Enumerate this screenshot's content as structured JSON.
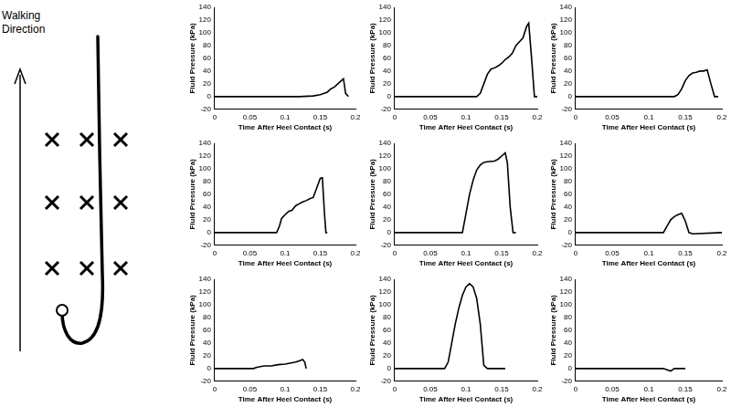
{
  "diagram": {
    "label": "Walking Direction"
  },
  "chart_data": [
    {
      "type": "line",
      "x_label": "Time After Heel Contact (s)",
      "y_label": "Fluid Pressure (kPa)",
      "xlim": [
        0,
        0.2
      ],
      "xticks": [
        0,
        0.05,
        0.1,
        0.15,
        0.2
      ],
      "ylim": [
        -20,
        140
      ],
      "yticks": [
        -20,
        0,
        20,
        40,
        60,
        80,
        100,
        120,
        140
      ],
      "grid": false,
      "series": [
        {
          "color": "#000000",
          "x": [
            0,
            0.12,
            0.14,
            0.15,
            0.16,
            0.165,
            0.17,
            0.175,
            0.18,
            0.183,
            0.186,
            0.19
          ],
          "values": [
            0,
            0,
            1,
            3,
            7,
            12,
            15,
            20,
            25,
            28,
            5,
            0
          ]
        }
      ]
    },
    {
      "type": "line",
      "x_label": "Time After Heel Contact (s)",
      "y_label": "Fluid Pressure (kPa)",
      "xlim": [
        0,
        0.2
      ],
      "xticks": [
        0,
        0.05,
        0.1,
        0.15,
        0.2
      ],
      "ylim": [
        -20,
        140
      ],
      "yticks": [
        -20,
        0,
        20,
        40,
        60,
        80,
        100,
        120,
        140
      ],
      "grid": false,
      "series": [
        {
          "color": "#000000",
          "x": [
            0,
            0.115,
            0.12,
            0.125,
            0.13,
            0.135,
            0.14,
            0.145,
            0.15,
            0.155,
            0.16,
            0.165,
            0.17,
            0.175,
            0.18,
            0.185,
            0.188,
            0.192,
            0.196,
            0.2
          ],
          "values": [
            0,
            0,
            5,
            20,
            35,
            43,
            45,
            48,
            52,
            58,
            62,
            68,
            80,
            86,
            92,
            110,
            115,
            60,
            0,
            0
          ]
        }
      ]
    },
    {
      "type": "line",
      "x_label": "Time After Heel Contact (s)",
      "y_label": "Fluid Pressure (kPa)",
      "xlim": [
        0,
        0.2
      ],
      "xticks": [
        0,
        0.05,
        0.1,
        0.15,
        0.2
      ],
      "ylim": [
        -20,
        140
      ],
      "yticks": [
        -20,
        0,
        20,
        40,
        60,
        80,
        100,
        120,
        140
      ],
      "grid": false,
      "series": [
        {
          "color": "#000000",
          "x": [
            0,
            0.135,
            0.14,
            0.145,
            0.15,
            0.155,
            0.16,
            0.165,
            0.17,
            0.175,
            0.18,
            0.185,
            0.19,
            0.195
          ],
          "values": [
            0,
            0,
            3,
            12,
            25,
            33,
            37,
            38,
            40,
            40,
            42,
            20,
            0,
            0
          ]
        }
      ]
    },
    {
      "type": "line",
      "x_label": "Time After Heel Contact (s)",
      "y_label": "Fluid Pressure (kPa)",
      "xlim": [
        0,
        0.2
      ],
      "xticks": [
        0,
        0.05,
        0.1,
        0.15,
        0.2
      ],
      "ylim": [
        -20,
        140
      ],
      "yticks": [
        -20,
        0,
        20,
        40,
        60,
        80,
        100,
        120,
        140
      ],
      "grid": false,
      "series": [
        {
          "color": "#000000",
          "x": [
            0,
            0.088,
            0.092,
            0.095,
            0.1,
            0.105,
            0.11,
            0.115,
            0.12,
            0.125,
            0.13,
            0.135,
            0.14,
            0.145,
            0.15,
            0.153,
            0.156,
            0.158,
            0.16
          ],
          "values": [
            0,
            0,
            10,
            22,
            28,
            33,
            35,
            42,
            45,
            48,
            50,
            53,
            55,
            70,
            85,
            86,
            30,
            0,
            0
          ]
        }
      ]
    },
    {
      "type": "line",
      "x_label": "Time After Heel Contact (s)",
      "y_label": "Fluid Pressure (kPa)",
      "xlim": [
        0,
        0.2
      ],
      "xticks": [
        0,
        0.05,
        0.1,
        0.15,
        0.2
      ],
      "ylim": [
        -20,
        140
      ],
      "yticks": [
        -20,
        0,
        20,
        40,
        60,
        80,
        100,
        120,
        140
      ],
      "grid": false,
      "series": [
        {
          "color": "#000000",
          "x": [
            0,
            0.095,
            0.1,
            0.105,
            0.11,
            0.115,
            0.12,
            0.125,
            0.13,
            0.14,
            0.145,
            0.15,
            0.155,
            0.158,
            0.162,
            0.166,
            0.17
          ],
          "values": [
            0,
            0,
            30,
            60,
            82,
            98,
            106,
            110,
            111,
            112,
            115,
            120,
            125,
            110,
            40,
            0,
            0
          ]
        }
      ]
    },
    {
      "type": "line",
      "x_label": "Time After Heel Contact (s)",
      "y_label": "Fluid Pressure (kPa)",
      "xlim": [
        0,
        0.2
      ],
      "xticks": [
        0,
        0.05,
        0.1,
        0.15,
        0.2
      ],
      "ylim": [
        -20,
        140
      ],
      "yticks": [
        -20,
        0,
        20,
        40,
        60,
        80,
        100,
        120,
        140
      ],
      "grid": false,
      "series": [
        {
          "color": "#000000",
          "x": [
            0,
            0.12,
            0.125,
            0.13,
            0.135,
            0.14,
            0.145,
            0.15,
            0.155,
            0.16,
            0.2
          ],
          "values": [
            0,
            0,
            10,
            20,
            25,
            28,
            30,
            18,
            0,
            -2,
            0
          ]
        }
      ]
    },
    {
      "type": "line",
      "x_label": "Time After Heel Contact (s)",
      "y_label": "Fluid Pressure (kPa)",
      "xlim": [
        0,
        0.2
      ],
      "xticks": [
        0,
        0.05,
        0.1,
        0.15,
        0.2
      ],
      "ylim": [
        -20,
        140
      ],
      "yticks": [
        -20,
        0,
        20,
        40,
        60,
        80,
        100,
        120,
        140
      ],
      "grid": false,
      "series": [
        {
          "color": "#000000",
          "x": [
            0,
            0.055,
            0.06,
            0.07,
            0.08,
            0.09,
            0.1,
            0.11,
            0.115,
            0.12,
            0.125,
            0.128,
            0.13
          ],
          "values": [
            0,
            0,
            2,
            4,
            4,
            6,
            7,
            9,
            10,
            12,
            14,
            10,
            0
          ]
        }
      ]
    },
    {
      "type": "line",
      "x_label": "Time After Heel Contact (s)",
      "y_label": "Fluid Pressure (kPa)",
      "xlim": [
        0,
        0.2
      ],
      "xticks": [
        0,
        0.05,
        0.1,
        0.15,
        0.2
      ],
      "ylim": [
        -20,
        140
      ],
      "yticks": [
        -20,
        0,
        20,
        40,
        60,
        80,
        100,
        120,
        140
      ],
      "grid": false,
      "series": [
        {
          "color": "#000000",
          "x": [
            0,
            0.07,
            0.075,
            0.08,
            0.085,
            0.09,
            0.095,
            0.1,
            0.105,
            0.11,
            0.115,
            0.12,
            0.125,
            0.13,
            0.155
          ],
          "values": [
            0,
            0,
            10,
            40,
            70,
            95,
            115,
            128,
            133,
            128,
            110,
            70,
            5,
            0,
            0
          ]
        }
      ]
    },
    {
      "type": "line",
      "x_label": "Time After Heel Contact (s)",
      "y_label": "Fluid Pressure (kPa)",
      "xlim": [
        0,
        0.2
      ],
      "xticks": [
        0,
        0.05,
        0.1,
        0.15,
        0.2
      ],
      "ylim": [
        -20,
        140
      ],
      "yticks": [
        -20,
        0,
        20,
        40,
        60,
        80,
        100,
        120,
        140
      ],
      "grid": false,
      "series": [
        {
          "color": "#000000",
          "x": [
            0,
            0.12,
            0.125,
            0.13,
            0.135,
            0.15
          ],
          "values": [
            0,
            0,
            -2,
            -4,
            0,
            0
          ]
        }
      ]
    }
  ]
}
